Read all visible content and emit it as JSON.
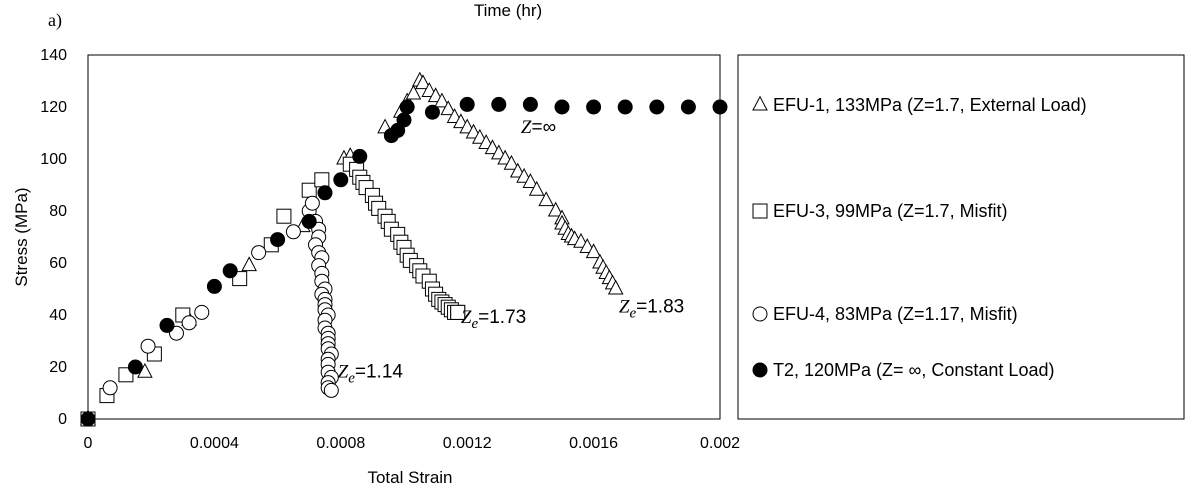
{
  "panel_label": "a)",
  "top_axis_label": "Time (hr)",
  "chart_data": {
    "type": "scatter",
    "xlabel": "Total Strain",
    "ylabel": "Stress (MPa)",
    "xlim": [
      0,
      0.002
    ],
    "ylim": [
      0,
      140
    ],
    "x_ticks": [
      "0",
      "0.0004",
      "0.0008",
      "0.0012",
      "0.0016",
      "0.002"
    ],
    "y_ticks": [
      "0",
      "20",
      "40",
      "60",
      "80",
      "100",
      "120",
      "140"
    ],
    "grid": false,
    "legend_placement": "right",
    "series": [
      {
        "name": "EFU-1, 133MPa (Z=1.7, External Load)",
        "marker": "triangle",
        "points": [
          [
            0,
            0
          ],
          [
            0,
            0
          ],
          [
            0.00018,
            18
          ],
          [
            0.00032,
            38
          ],
          [
            0.00051,
            59
          ],
          [
            0.00068,
            74
          ],
          [
            0.00081,
            100
          ],
          [
            0.00083,
            101
          ],
          [
            0.00094,
            112
          ],
          [
            0.00099,
            118
          ],
          [
            0.00101,
            122
          ],
          [
            0.00103,
            125
          ],
          [
            0.00105,
            130
          ],
          [
            0.00106,
            129
          ],
          [
            0.00108,
            126
          ],
          [
            0.0011,
            124
          ],
          [
            0.00112,
            122
          ],
          [
            0.00114,
            119
          ],
          [
            0.00116,
            116
          ],
          [
            0.00118,
            114
          ],
          [
            0.0012,
            112
          ],
          [
            0.00122,
            110
          ],
          [
            0.00124,
            108
          ],
          [
            0.00126,
            106
          ],
          [
            0.00128,
            104
          ],
          [
            0.0013,
            102
          ],
          [
            0.00132,
            100
          ],
          [
            0.00134,
            98
          ],
          [
            0.00136,
            95
          ],
          [
            0.00138,
            93
          ],
          [
            0.0014,
            91
          ],
          [
            0.00142,
            88
          ],
          [
            0.00145,
            84
          ],
          [
            0.00148,
            80
          ],
          [
            0.0015,
            77
          ],
          [
            0.0015,
            75
          ],
          [
            0.00151,
            73
          ],
          [
            0.00152,
            71
          ],
          [
            0.00153,
            70
          ],
          [
            0.00154,
            69
          ],
          [
            0.00156,
            68
          ],
          [
            0.00158,
            66
          ],
          [
            0.0016,
            64
          ],
          [
            0.00162,
            60
          ],
          [
            0.00163,
            58
          ],
          [
            0.00164,
            56
          ],
          [
            0.00165,
            54
          ],
          [
            0.00166,
            52
          ],
          [
            0.00167,
            50
          ]
        ]
      },
      {
        "name": "EFU-3, 99MPa (Z=1.7, Misfit)",
        "marker": "square",
        "points": [
          [
            0,
            0
          ],
          [
            6e-05,
            9
          ],
          [
            0.00012,
            17
          ],
          [
            0.00021,
            25
          ],
          [
            0.0003,
            40
          ],
          [
            0.00048,
            54
          ],
          [
            0.00058,
            67
          ],
          [
            0.00062,
            78
          ],
          [
            0.0007,
            88
          ],
          [
            0.00074,
            92
          ],
          [
            0.00083,
            98
          ],
          [
            0.00085,
            96
          ],
          [
            0.00086,
            93
          ],
          [
            0.00087,
            91
          ],
          [
            0.00088,
            89
          ],
          [
            0.0009,
            86
          ],
          [
            0.00091,
            83
          ],
          [
            0.00092,
            81
          ],
          [
            0.00094,
            78
          ],
          [
            0.00095,
            76
          ],
          [
            0.00096,
            73
          ],
          [
            0.00098,
            71
          ],
          [
            0.00099,
            68
          ],
          [
            0.001,
            66
          ],
          [
            0.00101,
            63
          ],
          [
            0.00102,
            61
          ],
          [
            0.00104,
            59
          ],
          [
            0.00105,
            57
          ],
          [
            0.00106,
            55
          ],
          [
            0.00108,
            53
          ],
          [
            0.00109,
            50
          ],
          [
            0.0011,
            48
          ],
          [
            0.00111,
            46
          ],
          [
            0.00112,
            45
          ],
          [
            0.00113,
            44
          ],
          [
            0.00114,
            43
          ],
          [
            0.00115,
            42
          ],
          [
            0.00116,
            41
          ],
          [
            0.00117,
            41
          ],
          [
            0.00117,
            41
          ]
        ]
      },
      {
        "name": "EFU-4, 83MPa (Z=1.17, Misfit)",
        "marker": "circle",
        "points": [
          [
            0,
            0
          ],
          [
            7e-05,
            12
          ],
          [
            0.00019,
            28
          ],
          [
            0.00028,
            33
          ],
          [
            0.00032,
            37
          ],
          [
            0.00036,
            41
          ],
          [
            0.00054,
            64
          ],
          [
            0.00065,
            72
          ],
          [
            0.0007,
            80
          ],
          [
            0.00071,
            83
          ],
          [
            0.00072,
            76
          ],
          [
            0.00073,
            73
          ],
          [
            0.00073,
            70
          ],
          [
            0.00072,
            67
          ],
          [
            0.00073,
            64
          ],
          [
            0.00074,
            62
          ],
          [
            0.00073,
            59
          ],
          [
            0.00074,
            56
          ],
          [
            0.00074,
            53
          ],
          [
            0.00075,
            50
          ],
          [
            0.00074,
            48
          ],
          [
            0.00075,
            46
          ],
          [
            0.00075,
            44
          ],
          [
            0.00075,
            42
          ],
          [
            0.00076,
            40
          ],
          [
            0.00075,
            38
          ],
          [
            0.00075,
            35
          ],
          [
            0.00076,
            33
          ],
          [
            0.00076,
            31
          ],
          [
            0.00076,
            29
          ],
          [
            0.00076,
            27
          ],
          [
            0.00077,
            25
          ],
          [
            0.00076,
            23
          ],
          [
            0.00076,
            21
          ],
          [
            0.00076,
            18
          ],
          [
            0.00077,
            16
          ],
          [
            0.00076,
            14
          ],
          [
            0.00076,
            12
          ],
          [
            0.00077,
            11
          ]
        ]
      },
      {
        "name": "T2, 120MPa (Z= ∞, Constant Load)",
        "marker": "filled-circle",
        "points": [
          [
            0,
            0
          ],
          [
            0.00015,
            20
          ],
          [
            0.00025,
            36
          ],
          [
            0.0004,
            51
          ],
          [
            0.00045,
            57
          ],
          [
            0.0006,
            69
          ],
          [
            0.0007,
            76
          ],
          [
            0.00075,
            87
          ],
          [
            0.0008,
            92
          ],
          [
            0.00086,
            101
          ],
          [
            0.00096,
            109
          ],
          [
            0.00098,
            111
          ],
          [
            0.001,
            115
          ],
          [
            0.00101,
            120
          ],
          [
            0.00109,
            118
          ],
          [
            0.0012,
            121
          ],
          [
            0.0013,
            121
          ],
          [
            0.0014,
            121
          ],
          [
            0.0015,
            120
          ],
          [
            0.0016,
            120
          ],
          [
            0.0017,
            120
          ],
          [
            0.0018,
            120
          ],
          [
            0.0019,
            120
          ],
          [
            0.002,
            120
          ]
        ]
      }
    ],
    "annotations": [
      {
        "text": "Z=∞",
        "x": 0.00137,
        "y": 110,
        "kind": "plain"
      },
      {
        "base": "Z",
        "sub": "e",
        "value": "=1.83",
        "x": 0.00168,
        "y": 41
      },
      {
        "base": "Z",
        "sub": "e",
        "value": "=1.73",
        "x": 0.00118,
        "y": 37
      },
      {
        "base": "Z",
        "sub": "e",
        "value": "=1.14",
        "x": 0.00079,
        "y": 16
      }
    ]
  }
}
